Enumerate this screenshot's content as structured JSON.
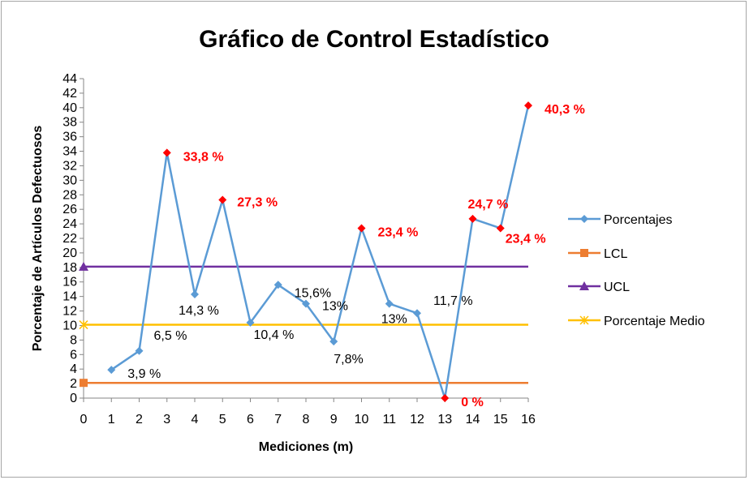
{
  "chart_data": {
    "type": "line",
    "title": "Gráfico de Control Estadístico",
    "xlabel": "Mediciones (m)",
    "ylabel": "Porcentaje de Artículos Defectuosos",
    "xlim": [
      0,
      16
    ],
    "ylim": [
      0,
      44
    ],
    "x_ticks": [
      "0",
      "1",
      "2",
      "3",
      "4",
      "5",
      "6",
      "7",
      "8",
      "9",
      "10",
      "11",
      "12",
      "13",
      "14",
      "15",
      "16"
    ],
    "y_ticks": [
      "0",
      "2",
      "4",
      "6",
      "8",
      "10",
      "12",
      "14",
      "16",
      "18",
      "20",
      "22",
      "24",
      "26",
      "28",
      "30",
      "32",
      "34",
      "36",
      "38",
      "40",
      "42",
      "44"
    ],
    "grid": false,
    "legend_position": "right",
    "colors": {
      "porcentajes": "#5b9bd5",
      "lcl": "#ed7d31",
      "ucl": "#7030a0",
      "medio": "#ffc000",
      "out_of_control": "#ff0000"
    },
    "series": [
      {
        "name": "Porcentajes",
        "x": [
          1,
          2,
          3,
          4,
          5,
          6,
          7,
          8,
          9,
          10,
          11,
          12,
          13,
          14,
          15,
          16
        ],
        "values": [
          3.9,
          6.5,
          33.8,
          14.3,
          27.3,
          10.4,
          15.6,
          13,
          7.8,
          23.4,
          13,
          11.7,
          0,
          24.7,
          23.4,
          40.3
        ],
        "out_of_control": [
          false,
          false,
          true,
          false,
          true,
          false,
          false,
          false,
          false,
          true,
          false,
          false,
          true,
          true,
          true,
          true
        ]
      },
      {
        "name": "LCL",
        "x": [
          0,
          16
        ],
        "values": [
          2.1,
          2.1
        ]
      },
      {
        "name": "UCL",
        "x": [
          0,
          16
        ],
        "values": [
          18.1,
          18.1
        ]
      },
      {
        "name": "Porcentaje Medio",
        "x": [
          0,
          16
        ],
        "values": [
          10.1,
          10.1
        ]
      }
    ],
    "data_labels": [
      {
        "text": "3,9 %",
        "red": false
      },
      {
        "text": "6,5 %",
        "red": false
      },
      {
        "text": "33,8 %",
        "red": true
      },
      {
        "text": "14,3 %",
        "red": false
      },
      {
        "text": "27,3 %",
        "red": true
      },
      {
        "text": "10,4 %",
        "red": false
      },
      {
        "text": "15,6%",
        "red": false
      },
      {
        "text": "13%",
        "red": false
      },
      {
        "text": "7,8%",
        "red": false
      },
      {
        "text": "23,4 %",
        "red": true
      },
      {
        "text": "13%",
        "red": false
      },
      {
        "text": "11,7 %",
        "red": false
      },
      {
        "text": "0 %",
        "red": true
      },
      {
        "text": "24,7 %",
        "red": true
      },
      {
        "text": "23,4 %",
        "red": true
      },
      {
        "text": "40,3 %",
        "red": true
      }
    ]
  }
}
